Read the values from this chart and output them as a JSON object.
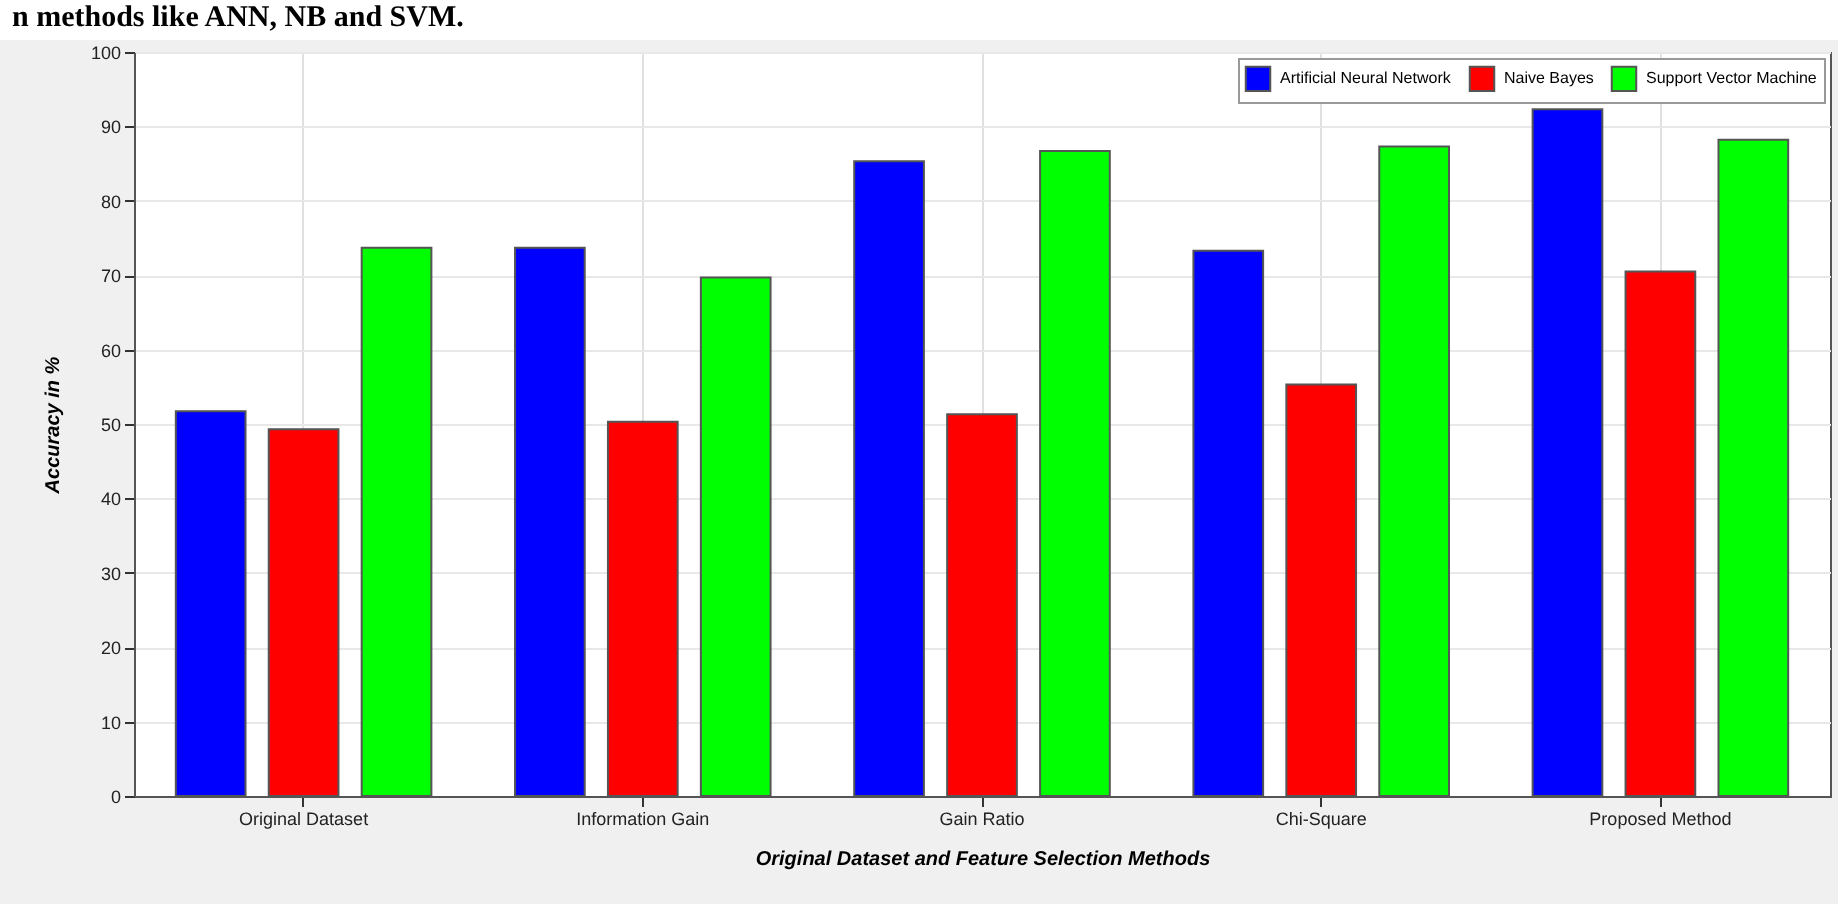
{
  "chart_data": {
    "type": "bar",
    "xlabel": "Original Dataset and Feature Selection Methods",
    "ylabel": "Accuracy in %",
    "annotations": [
      "n methods like ANN, NB and SVM."
    ],
    "categories": [
      "Original Dataset",
      "Information Gain",
      "Gain Ratio",
      "Chi-Square",
      "Proposed Method"
    ],
    "series": [
      {
        "name": "Artificial Neural Network",
        "color": "#0000ff",
        "values": [
          51.7,
          73.7,
          85.3,
          73.3,
          92.3
        ]
      },
      {
        "name": "Naive Bayes",
        "color": "#ff0000",
        "values": [
          49.3,
          50.3,
          51.3,
          55.3,
          70.5
        ]
      },
      {
        "name": "Support Vector Machine",
        "color": "#00ff00",
        "values": [
          73.7,
          69.7,
          86.7,
          87.3,
          88.2
        ]
      }
    ],
    "ylim": [
      0,
      100
    ],
    "yticks": [
      0,
      10,
      20,
      30,
      40,
      50,
      60,
      70,
      80,
      90,
      100
    ],
    "grid": true,
    "legend": "top right"
  }
}
